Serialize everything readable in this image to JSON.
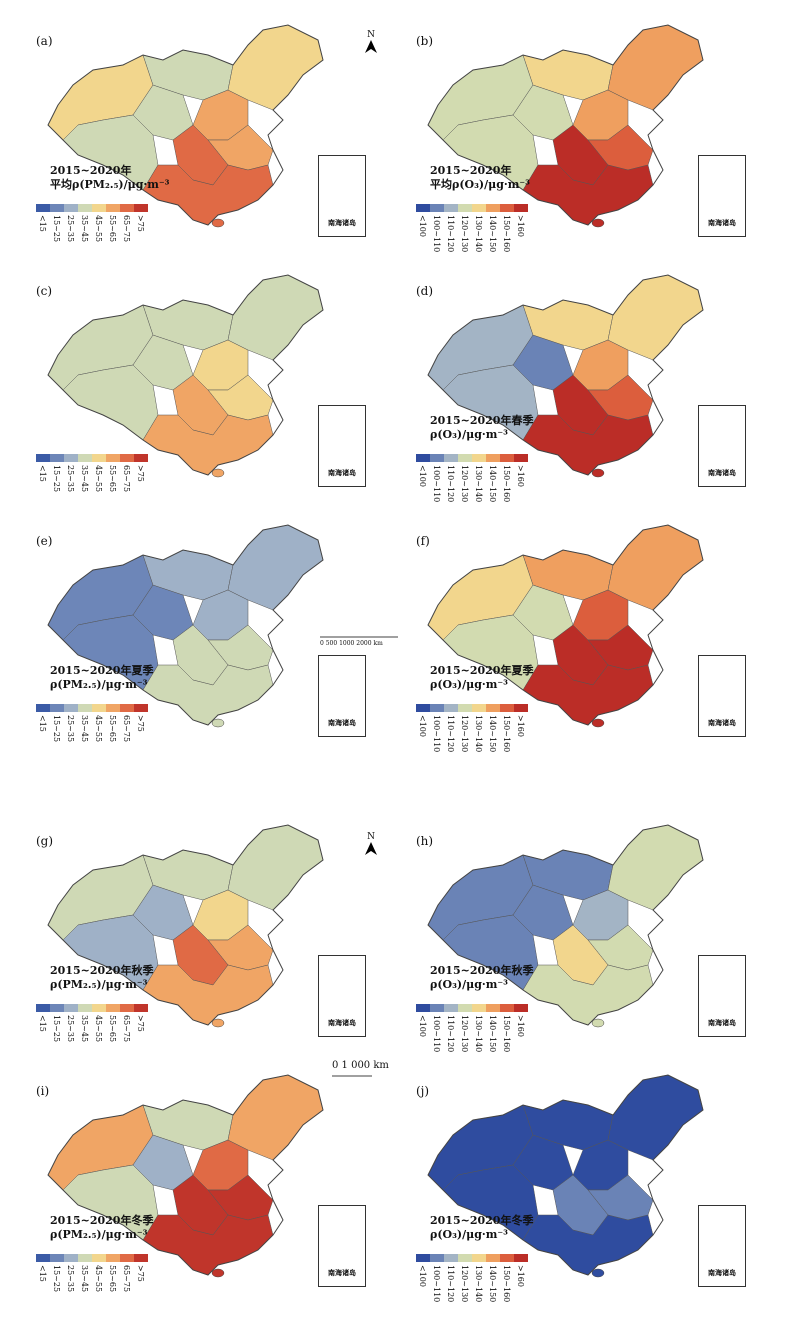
{
  "pm_legend": {
    "labels": [
      "<15",
      "15~25",
      "25~35",
      "35~45",
      "45~55",
      "55~65",
      "65~75",
      ">75"
    ],
    "colors": [
      "#3b5ba6",
      "#6d86b8",
      "#9fb1c7",
      "#cfd9b5",
      "#f2d68d",
      "#f0a565",
      "#e06a45",
      "#c0352b"
    ]
  },
  "o3_legend": {
    "labels": [
      "<100",
      "100~110",
      "110~120",
      "120~130",
      "130~140",
      "140~150",
      "150~160",
      ">160"
    ],
    "colors": [
      "#2f4c9f",
      "#6a83b6",
      "#a3b4c5",
      "#d2dbb0",
      "#f2d68d",
      "#ef9f5f",
      "#dc5e3d",
      "#bb2d27"
    ]
  },
  "inset_label": "南海诸岛",
  "north_label": "N",
  "scalebar_small": {
    "ticks": [
      "0",
      "500",
      "1000",
      "2000 km"
    ]
  },
  "scalebar_large": {
    "label": "0     1 000 km"
  },
  "panels": [
    {
      "id": "a",
      "label": "(a)",
      "title1": "2015~2020年",
      "title2": "平均ρ(PM₂.₅)/μg·m⁻³",
      "kind": "pm",
      "levels": [
        4,
        3,
        3,
        3,
        5,
        5,
        6,
        6,
        4
      ]
    },
    {
      "id": "b",
      "label": "(b)",
      "title1": "2015~2020年",
      "title2": "平均ρ(O₃)/μg·m⁻³",
      "kind": "o3",
      "levels": [
        3,
        3,
        3,
        4,
        5,
        6,
        7,
        7,
        5
      ]
    },
    {
      "id": "c",
      "label": "(c)",
      "title1": "",
      "title2": "",
      "kind": "pm",
      "levels": [
        3,
        3,
        3,
        3,
        4,
        4,
        5,
        5,
        3
      ]
    },
    {
      "id": "d",
      "label": "(d)",
      "title1": "2015~2020年春季",
      "title2": "ρ(O₃)/μg·m⁻³",
      "kind": "o3",
      "levels": [
        2,
        2,
        1,
        4,
        5,
        6,
        7,
        7,
        4
      ]
    },
    {
      "id": "e",
      "label": "(e)",
      "title1": "2015~2020年夏季",
      "title2": "ρ(PM₂.₅)/μg·m⁻³",
      "kind": "pm",
      "levels": [
        1,
        1,
        1,
        2,
        2,
        3,
        3,
        3,
        2
      ]
    },
    {
      "id": "f",
      "label": "(f)",
      "title1": "2015~2020年夏季",
      "title2": "ρ(O₃)/μg·m⁻³",
      "kind": "o3",
      "levels": [
        4,
        3,
        3,
        5,
        6,
        7,
        7,
        7,
        5
      ]
    },
    {
      "id": "g",
      "label": "(g)",
      "title1": "2015~2020年秋季",
      "title2": "ρ(PM₂.₅)/μg·m⁻³",
      "kind": "pm",
      "levels": [
        3,
        2,
        2,
        3,
        4,
        5,
        6,
        5,
        3
      ]
    },
    {
      "id": "h",
      "label": "(h)",
      "title1": "2015~2020年秋季",
      "title2": "ρ(O₃)/μg·m⁻³",
      "kind": "o3",
      "levels": [
        1,
        1,
        1,
        1,
        2,
        3,
        4,
        3,
        3
      ]
    },
    {
      "id": "i",
      "label": "(i)",
      "title1": "2015~2020年冬季",
      "title2": "ρ(PM₂.₅)/μg·m⁻³",
      "kind": "pm",
      "levels": [
        5,
        3,
        2,
        3,
        6,
        7,
        7,
        7,
        5
      ]
    },
    {
      "id": "j",
      "label": "(j)",
      "title1": "2015~2020年冬季",
      "title2": "ρ(O₃)/μg·m⁻³",
      "kind": "o3",
      "levels": [
        0,
        0,
        0,
        0,
        0,
        1,
        1,
        0,
        0
      ]
    }
  ]
}
